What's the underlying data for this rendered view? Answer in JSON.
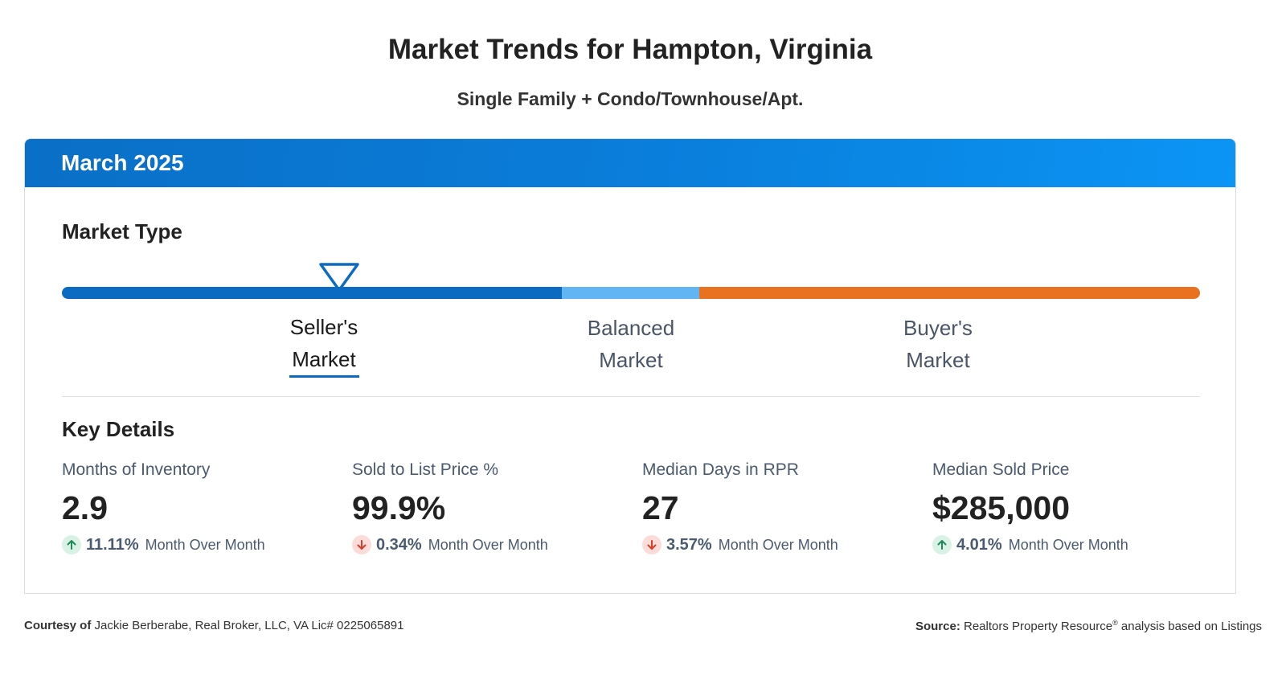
{
  "header": {
    "title": "Market Trends for Hampton, Virginia",
    "subtitle": "Single Family + Condo/Townhouse/Apt."
  },
  "card": {
    "period": "March 2025",
    "market_type": {
      "heading": "Market Type",
      "labels": [
        {
          "line1": "Seller's",
          "line2": "Market"
        },
        {
          "line1": "Balanced",
          "line2": "Market"
        },
        {
          "line1": "Buyer's",
          "line2": "Market"
        }
      ],
      "active": "Seller's Market",
      "colors": {
        "seller": "#0b6bc1",
        "balanced": "#61b5f2",
        "buyer": "#e8721f"
      }
    },
    "key_details": {
      "heading": "Key Details",
      "metrics": [
        {
          "label": "Months of Inventory",
          "value": "2.9",
          "direction": "up",
          "change": "11.11%",
          "change_text": "Month Over Month"
        },
        {
          "label": "Sold to List Price %",
          "value": "99.9%",
          "direction": "down",
          "change": "0.34%",
          "change_text": "Month Over Month"
        },
        {
          "label": "Median Days in RPR",
          "value": "27",
          "direction": "down",
          "change": "3.57%",
          "change_text": "Month Over Month"
        },
        {
          "label": "Median Sold Price",
          "value": "$285,000",
          "direction": "up",
          "change": "4.01%",
          "change_text": "Month Over Month"
        }
      ]
    }
  },
  "footer": {
    "courtesy_label": "Courtesy of",
    "courtesy_text": "Jackie Berberabe, Real Broker, LLC, VA Lic# 0225065891",
    "source_label": "Source:",
    "source_name": "Realtors Property Resource",
    "source_mark": "®",
    "source_text": "analysis based on Listings"
  }
}
